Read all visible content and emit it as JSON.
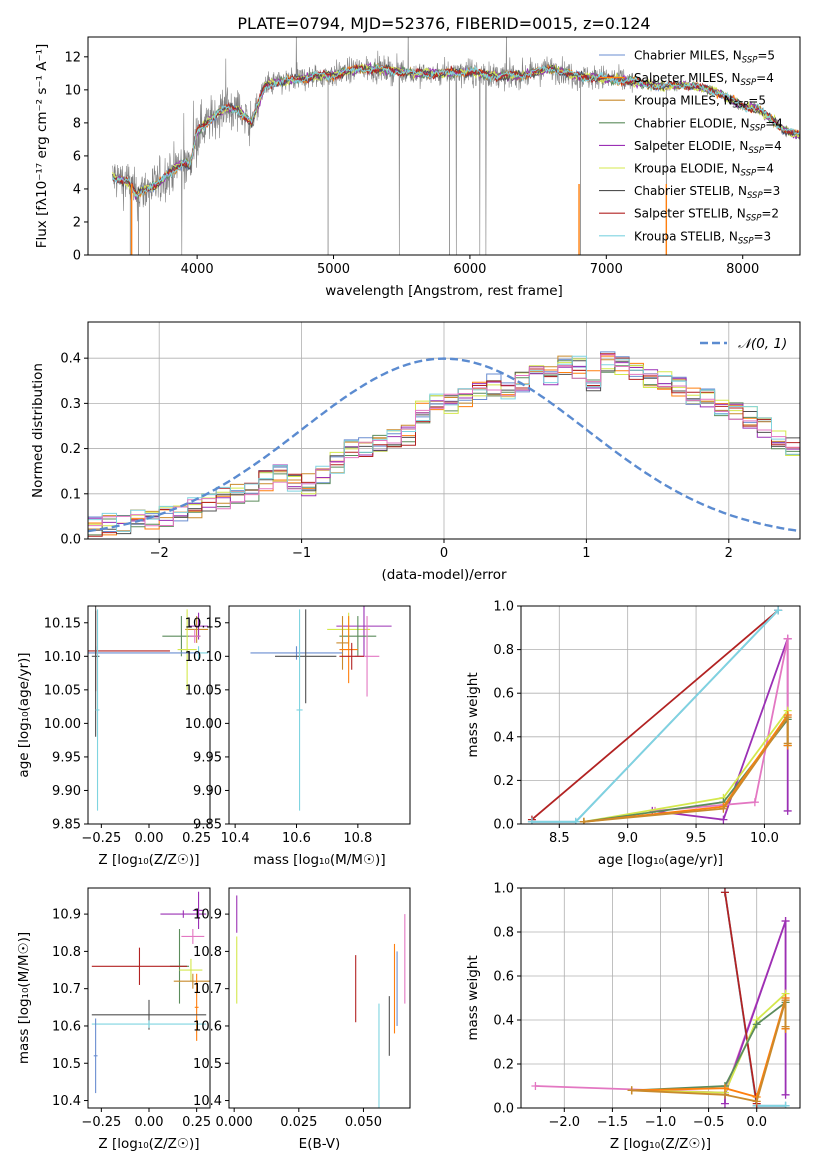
{
  "chart_data": [
    {
      "id": "spectrum",
      "type": "line",
      "title": "PLATE=0794, MJD=52376, FIBERID=0015, z=0.124",
      "xlabel": "wavelength [Angstrom, rest frame]",
      "ylabel": "Flux [fλ10⁻¹⁷ erg cm⁻² s⁻¹ A⁻¹]",
      "xlim": [
        3200,
        8420
      ],
      "ylim": [
        0,
        13.2
      ],
      "xticks": [
        4000,
        5000,
        6000,
        7000,
        8000
      ],
      "yticks": [
        0,
        2,
        4,
        6,
        8,
        10,
        12
      ],
      "legend_position": "right",
      "data_series": {
        "name": "data",
        "color": "#808080"
      },
      "continuum": {
        "x": [
          3380,
          3500,
          3550,
          3620,
          3700,
          3800,
          3900,
          3950,
          4000,
          4100,
          4200,
          4300,
          4400,
          4500,
          4700,
          4860,
          5000,
          5200,
          5400,
          5600,
          5800,
          6000,
          6200,
          6400,
          6600,
          6800,
          7000,
          7200,
          7400,
          7600,
          7800,
          8000,
          8100,
          8200,
          8300,
          8420
        ],
        "y": [
          4.7,
          4.4,
          3.6,
          4.0,
          4.2,
          5.0,
          5.6,
          5.4,
          7.5,
          8.2,
          8.9,
          8.8,
          8.0,
          10.3,
          10.6,
          10.8,
          10.9,
          11.3,
          11.2,
          11.0,
          11.0,
          11.1,
          10.8,
          10.9,
          11.3,
          10.8,
          10.7,
          10.5,
          10.2,
          10.3,
          9.9,
          9.0,
          8.9,
          8.3,
          7.6,
          7.2
        ]
      },
      "legend": [
        {
          "label": "Chabrier MILES, N",
          "sub": "SSP",
          "suffix": "=5",
          "color": "#6a8dd0"
        },
        {
          "label": "Salpeter MILES, N",
          "sub": "SSP",
          "suffix": "=4",
          "color": "#ff7f0e"
        },
        {
          "label": "Kroupa MILES, N",
          "sub": "SSP",
          "suffix": "=5",
          "color": "#c98a2c"
        },
        {
          "label": "Chabrier ELODIE, N",
          "sub": "SSP",
          "suffix": "=4",
          "color": "#5c8c5c"
        },
        {
          "label": "Salpeter ELODIE, N",
          "sub": "SSP",
          "suffix": "=4",
          "color": "#9b30b5"
        },
        {
          "label": "Kroupa ELODIE, N",
          "sub": "SSP",
          "suffix": "=4",
          "color": "#d4e84c"
        },
        {
          "label": "Chabrier STELIB, N",
          "sub": "SSP",
          "suffix": "=3",
          "color": "#505050"
        },
        {
          "label": "Salpeter STELIB, N",
          "sub": "SSP",
          "suffix": "=2",
          "color": "#b22222"
        },
        {
          "label": "Kroupa STELIB, N",
          "sub": "SSP",
          "suffix": "=3",
          "color": "#7fd4e0"
        }
      ]
    },
    {
      "id": "residuals",
      "type": "histogram",
      "xlabel": "(data-model)/error",
      "ylabel": "Normed distribution",
      "xlim": [
        -2.5,
        2.5
      ],
      "ylim": [
        0,
        0.48
      ],
      "xticks": [
        -2,
        -1,
        0,
        1,
        2
      ],
      "yticks": [
        0.0,
        0.1,
        0.2,
        0.3,
        0.4
      ],
      "grid": true,
      "legend_position": "top-right",
      "gaussian": {
        "label": "𝒩(0, 1)",
        "color": "#5b8bd0"
      },
      "bin_width": 0.1,
      "base_values": [
        0.03,
        0.032,
        0.035,
        0.04,
        0.045,
        0.05,
        0.06,
        0.07,
        0.075,
        0.09,
        0.1,
        0.105,
        0.13,
        0.14,
        0.125,
        0.12,
        0.14,
        0.17,
        0.2,
        0.2,
        0.215,
        0.225,
        0.23,
        0.28,
        0.3,
        0.3,
        0.31,
        0.33,
        0.34,
        0.33,
        0.35,
        0.37,
        0.36,
        0.38,
        0.38,
        0.35,
        0.39,
        0.38,
        0.37,
        0.36,
        0.35,
        0.34,
        0.32,
        0.31,
        0.29,
        0.28,
        0.27,
        0.25,
        0.22,
        0.2,
        0.18,
        0.17,
        0.15,
        0.12,
        0.11,
        0.1,
        0.09,
        0.08,
        0.07,
        0.07,
        0.06,
        0.05,
        0.04,
        0.035,
        0.03,
        0.028,
        0.025,
        0.025,
        0.02,
        0.02
      ],
      "series_colors": [
        "#6a8dd0",
        "#ff7f0e",
        "#c98a2c",
        "#5c8c5c",
        "#9b30b5",
        "#d4e84c",
        "#505050",
        "#b22222",
        "#7fd4e0",
        "#e377c2"
      ]
    },
    {
      "id": "age-vs-Z",
      "type": "errorbar",
      "xlabel": "Z [log₁₀(Z/Z☉)]",
      "ylabel": "age  [log₁₀(age/yr)]",
      "xlim": [
        -0.32,
        0.32
      ],
      "ylim": [
        9.85,
        10.175
      ],
      "xticks": [
        -0.25,
        0.0,
        0.25
      ],
      "yticks": [
        9.85,
        9.9,
        9.95,
        10.0,
        10.05,
        10.1,
        10.15
      ],
      "points": [
        {
          "x": 0.17,
          "y": 10.13,
          "xerr": 0.1,
          "yerr": 0.03,
          "color": "#5c8c5c"
        },
        {
          "x": 0.25,
          "y": 10.14,
          "xerr": 0.06,
          "yerr": 0.02,
          "color": "#c98a2c"
        },
        {
          "x": 0.26,
          "y": 10.145,
          "xerr": 0.05,
          "yerr": 0.02,
          "color": "#9b30b5"
        },
        {
          "x": 0.24,
          "y": 10.13,
          "xerr": 0.03,
          "yerr": 0.01,
          "color": "#e377c2"
        },
        {
          "x": 0.2,
          "y": 10.11,
          "xerr": 0.05,
          "yerr": 0.06,
          "color": "#d4e84c"
        },
        {
          "x": 0.26,
          "y": 10.105,
          "xerr": 0.05,
          "yerr": 0.01,
          "color": "#7fd4e0"
        },
        {
          "x": -0.28,
          "y": 10.105,
          "xerr": 0.54,
          "yerr": 0.01,
          "color": "#6a8dd0"
        },
        {
          "x": -0.28,
          "y": 10.108,
          "xerr": 0.39,
          "yerr": 0.06,
          "color": "#b22222"
        },
        {
          "x": -0.28,
          "y": 10.1,
          "xerr": 0.02,
          "yerr": 0.12,
          "color": "#505050"
        },
        {
          "x": -0.27,
          "y": 10.02,
          "xerr": 0.01,
          "yerr": 0.15,
          "color": "#7fd4e0"
        }
      ]
    },
    {
      "id": "age-vs-mass",
      "type": "errorbar",
      "xlabel": "mass [log₁₀(M/M☉)]",
      "ylabel": "",
      "xlim": [
        10.38,
        10.97
      ],
      "ylim": [
        9.85,
        10.175
      ],
      "xticks": [
        10.4,
        10.6,
        10.8
      ],
      "yticks": [
        9.85,
        9.9,
        9.95,
        10.0,
        10.05,
        10.1,
        10.15
      ],
      "points": [
        {
          "x": 10.77,
          "y": 10.14,
          "xerr": 0.07,
          "yerr": 0.025,
          "color": "#d4e84c"
        },
        {
          "x": 10.82,
          "y": 10.145,
          "xerr": 0.09,
          "yerr": 0.045,
          "color": "#9b30b5"
        },
        {
          "x": 10.8,
          "y": 10.13,
          "xerr": 0.06,
          "yerr": 0.03,
          "color": "#5c8c5c"
        },
        {
          "x": 10.75,
          "y": 10.12,
          "xerr": 0.02,
          "yerr": 0.04,
          "color": "#c98a2c"
        },
        {
          "x": 10.77,
          "y": 10.11,
          "xerr": 0.03,
          "yerr": 0.05,
          "color": "#ff7f0e"
        },
        {
          "x": 10.83,
          "y": 10.1,
          "xerr": 0.04,
          "yerr": 0.06,
          "color": "#e377c2"
        },
        {
          "x": 10.6,
          "y": 10.105,
          "xerr": 0.15,
          "yerr": 0.01,
          "color": "#6a8dd0"
        },
        {
          "x": 10.63,
          "y": 10.1,
          "xerr": 0.1,
          "yerr": 0.07,
          "color": "#505050"
        },
        {
          "x": 10.78,
          "y": 10.1,
          "xerr": 0.04,
          "yerr": 0.02,
          "color": "#b22222"
        },
        {
          "x": 10.61,
          "y": 10.02,
          "xerr": 0.01,
          "yerr": 0.15,
          "color": "#7fd4e0"
        }
      ]
    },
    {
      "id": "weight-vs-age",
      "type": "line",
      "xlabel": "age  [log₁₀(age/yr)]",
      "ylabel": "mass weight",
      "xlim": [
        8.22,
        10.26
      ],
      "ylim": [
        0.0,
        1.0
      ],
      "xticks": [
        8.5,
        9.0,
        9.5,
        10.0
      ],
      "yticks": [
        0.0,
        0.2,
        0.4,
        0.6,
        0.8,
        1.0
      ],
      "grid": true,
      "series": [
        {
          "color": "#b22222",
          "x": [
            8.3,
            10.1
          ],
          "y": [
            0.02,
            0.98
          ]
        },
        {
          "color": "#6a8dd0",
          "x": [
            8.3,
            8.62,
            10.1
          ],
          "y": [
            0.01,
            0.01,
            0.98
          ]
        },
        {
          "color": "#7fd4e0",
          "x": [
            8.3,
            8.62,
            10.1
          ],
          "y": [
            0.01,
            0.01,
            0.98
          ]
        },
        {
          "color": "#9b30b5",
          "x": [
            9.18,
            9.7,
            10.17,
            10.17
          ],
          "y": [
            0.06,
            0.02,
            0.85,
            0.06
          ]
        },
        {
          "color": "#e377c2",
          "x": [
            9.2,
            9.93,
            10.17,
            10.17
          ],
          "y": [
            0.06,
            0.1,
            0.85,
            0.5
          ]
        },
        {
          "color": "#d4e84c",
          "x": [
            8.68,
            9.7,
            10.17,
            10.17
          ],
          "y": [
            0.01,
            0.12,
            0.52,
            0.36
          ]
        },
        {
          "color": "#5c8c5c",
          "x": [
            8.68,
            9.7,
            10.17,
            10.17
          ],
          "y": [
            0.01,
            0.1,
            0.48,
            0.36
          ]
        },
        {
          "color": "#ff7f0e",
          "x": [
            8.68,
            9.7,
            10.17,
            10.17
          ],
          "y": [
            0.01,
            0.08,
            0.5,
            0.36
          ]
        },
        {
          "color": "#c98a2c",
          "x": [
            8.68,
            9.7,
            10.17,
            10.17
          ],
          "y": [
            0.01,
            0.07,
            0.49,
            0.37
          ]
        }
      ]
    },
    {
      "id": "mass-vs-Z",
      "type": "errorbar",
      "xlabel": "Z [log₁₀(Z/Z☉)]",
      "ylabel": "mass [log₁₀(M/M☉)]",
      "xlim": [
        -0.32,
        0.32
      ],
      "ylim": [
        10.38,
        10.97
      ],
      "xticks": [
        -0.25,
        0.0,
        0.25
      ],
      "yticks": [
        10.4,
        10.5,
        10.6,
        10.7,
        10.8,
        10.9
      ],
      "points": [
        {
          "x": 0.18,
          "y": 10.9,
          "xerr": 0.12,
          "yerr": 0.01,
          "color": "#9b30b5"
        },
        {
          "x": 0.26,
          "y": 10.91,
          "xerr": 0.03,
          "yerr": 0.05,
          "color": "#9b30b5"
        },
        {
          "x": 0.23,
          "y": 10.84,
          "xerr": 0.06,
          "yerr": 0.02,
          "color": "#e377c2"
        },
        {
          "x": 0.16,
          "y": 10.76,
          "xerr": 0.05,
          "yerr": 0.1,
          "color": "#5c8c5c"
        },
        {
          "x": 0.22,
          "y": 10.75,
          "xerr": 0.06,
          "yerr": 0.03,
          "color": "#d4e84c"
        },
        {
          "x": 0.23,
          "y": 10.72,
          "xerr": 0.1,
          "yerr": 0.02,
          "color": "#c98a2c"
        },
        {
          "x": 0.25,
          "y": 10.65,
          "xerr": 0.01,
          "yerr": 0.09,
          "color": "#ff7f0e"
        },
        {
          "x": -0.05,
          "y": 10.76,
          "xerr": 0.25,
          "yerr": 0.05,
          "color": "#b22222"
        },
        {
          "x": 0.0,
          "y": 10.63,
          "xerr": 0.3,
          "yerr": 0.04,
          "color": "#505050"
        },
        {
          "x": 0.0,
          "y": 10.605,
          "xerr": 0.3,
          "yerr": 0.01,
          "color": "#7fd4e0"
        },
        {
          "x": -0.28,
          "y": 10.52,
          "xerr": 0.01,
          "yerr": 0.1,
          "color": "#6a8dd0"
        }
      ]
    },
    {
      "id": "mass-vs-EBV",
      "type": "errorbar",
      "xlabel": "E(B-V)",
      "ylabel": "",
      "xlim": [
        -0.002,
        0.068
      ],
      "ylim": [
        10.38,
        10.97
      ],
      "xticks": [
        0.0,
        0.025,
        0.05
      ],
      "yticks": [
        10.4,
        10.5,
        10.6,
        10.7,
        10.8,
        10.9
      ],
      "points": [
        {
          "x": 0.001,
          "y": 10.9,
          "xerr": 0,
          "yerr": 0.05,
          "color": "#9b30b5"
        },
        {
          "x": 0.001,
          "y": 10.75,
          "xerr": 0,
          "yerr": 0.09,
          "color": "#d4e84c"
        },
        {
          "x": 0.047,
          "y": 10.7,
          "xerr": 0,
          "yerr": 0.09,
          "color": "#b22222"
        },
        {
          "x": 0.056,
          "y": 10.52,
          "xerr": 0,
          "yerr": 0.14,
          "color": "#7fd4e0"
        },
        {
          "x": 0.06,
          "y": 10.6,
          "xerr": 0,
          "yerr": 0.08,
          "color": "#505050"
        },
        {
          "x": 0.062,
          "y": 10.7,
          "xerr": 0,
          "yerr": 0.12,
          "color": "#ff7f0e"
        },
        {
          "x": 0.063,
          "y": 10.7,
          "xerr": 0,
          "yerr": 0.1,
          "color": "#6a8dd0"
        },
        {
          "x": 0.066,
          "y": 10.78,
          "xerr": 0,
          "yerr": 0.12,
          "color": "#e377c2"
        }
      ]
    },
    {
      "id": "weight-vs-Z",
      "type": "line",
      "xlabel": "Z [log₁₀(Z/Z☉)]",
      "ylabel": "mass weight",
      "xlim": [
        -2.45,
        0.45
      ],
      "ylim": [
        0.0,
        1.0
      ],
      "xticks": [
        -2.0,
        -1.5,
        -1.0,
        -0.5,
        0.0
      ],
      "yticks": [
        0.0,
        0.2,
        0.4,
        0.6,
        0.8,
        1.0
      ],
      "grid": true,
      "series": [
        {
          "color": "#e377c2",
          "x": [
            -2.3,
            -0.33,
            0.3,
            0.3
          ],
          "y": [
            0.1,
            0.07,
            0.85,
            0.5
          ]
        },
        {
          "color": "#9b30b5",
          "x": [
            -0.33,
            -0.33,
            0.3,
            0.3
          ],
          "y": [
            0.02,
            0.06,
            0.85,
            0.06
          ]
        },
        {
          "color": "#6a8dd0",
          "x": [
            -0.33,
            0.0,
            0.3
          ],
          "y": [
            0.98,
            0.01,
            0.01
          ]
        },
        {
          "color": "#7fd4e0",
          "x": [
            -0.33,
            0.0,
            0.3
          ],
          "y": [
            0.98,
            0.01,
            0.01
          ]
        },
        {
          "color": "#b22222",
          "x": [
            -0.33,
            0.0
          ],
          "y": [
            0.98,
            0.02
          ]
        },
        {
          "color": "#d4e84c",
          "x": [
            -1.3,
            -0.33,
            0.0,
            0.3,
            0.3
          ],
          "y": [
            0.08,
            0.07,
            0.4,
            0.52,
            0.36
          ]
        },
        {
          "color": "#5c8c5c",
          "x": [
            -1.3,
            -0.33,
            0.0,
            0.3,
            0.3
          ],
          "y": [
            0.08,
            0.1,
            0.38,
            0.48,
            0.36
          ]
        },
        {
          "color": "#ff7f0e",
          "x": [
            -1.3,
            -0.33,
            0.0,
            0.3,
            0.3
          ],
          "y": [
            0.08,
            0.09,
            0.05,
            0.5,
            0.36
          ]
        },
        {
          "color": "#c98a2c",
          "x": [
            -1.3,
            -0.33,
            0.0,
            0.3,
            0.3
          ],
          "y": [
            0.08,
            0.06,
            0.03,
            0.49,
            0.37
          ]
        }
      ]
    }
  ]
}
